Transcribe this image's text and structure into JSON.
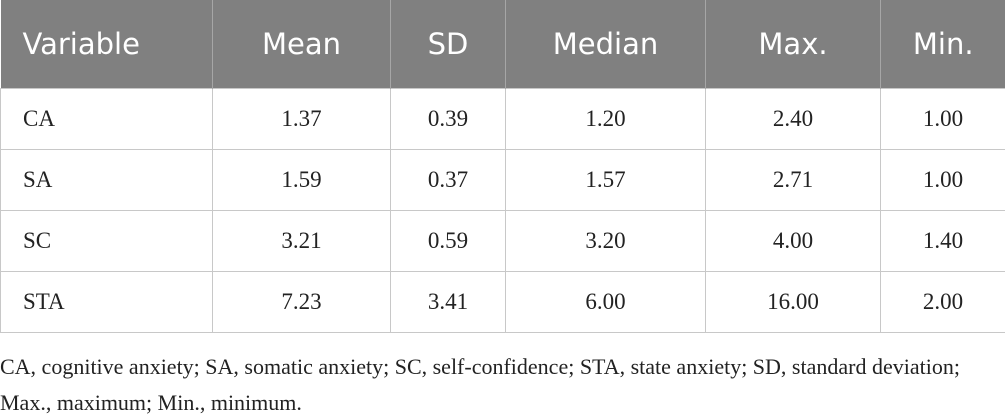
{
  "table": {
    "header": [
      "Variable",
      "Mean",
      "SD",
      "Median",
      "Max.",
      "Min."
    ],
    "rows": [
      [
        "CA",
        "1.37",
        "0.39",
        "1.20",
        "2.40",
        "1.00"
      ],
      [
        "SA",
        "1.59",
        "0.37",
        "1.57",
        "2.71",
        "1.00"
      ],
      [
        "SC",
        "3.21",
        "0.59",
        "3.20",
        "4.00",
        "1.40"
      ],
      [
        "STA",
        "7.23",
        "3.41",
        "6.00",
        "16.00",
        "2.00"
      ]
    ]
  },
  "footnote": "CA, cognitive anxiety; SA, somatic anxiety; SC, self-confidence; STA, state anxiety; SD, standard deviation; Max., maximum; Min., minimum."
}
